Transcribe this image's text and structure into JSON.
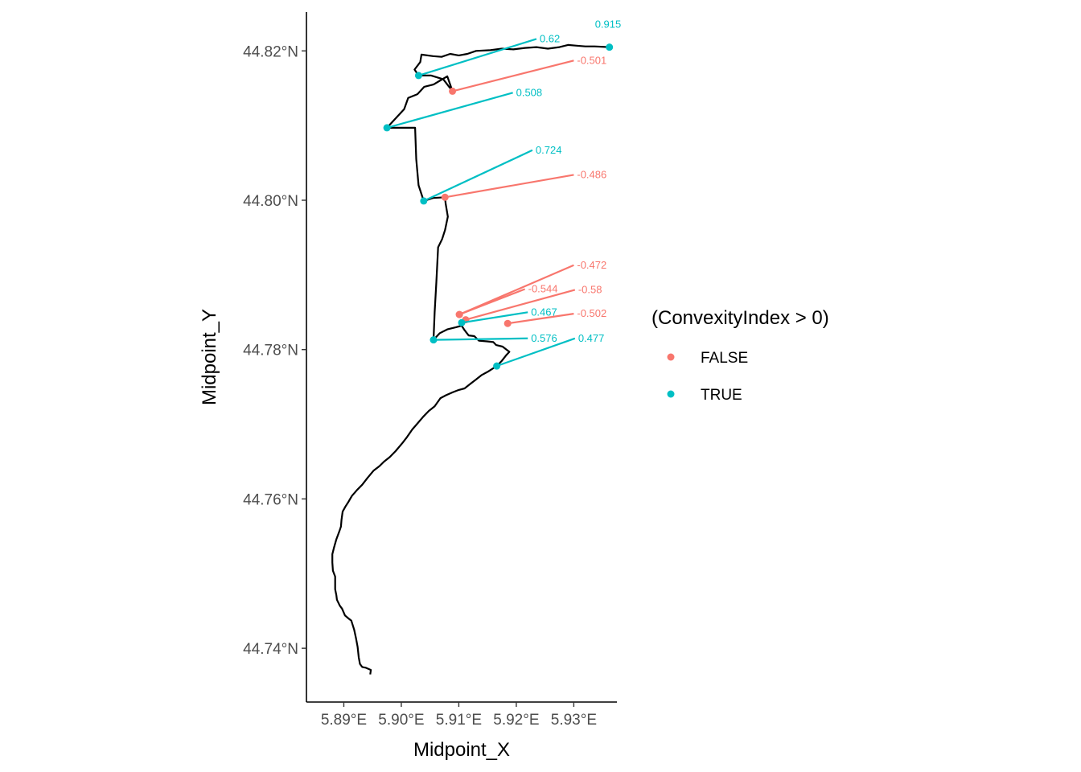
{
  "chart_data": {
    "type": "scatter",
    "title": "",
    "xlabel": "Midpoint_X",
    "ylabel": "Midpoint_Y",
    "xlim": [
      5.8835,
      5.9375
    ],
    "ylim": [
      44.7328,
      44.8252
    ],
    "x_ticks": [
      {
        "value": 5.89,
        "label": "5.89°E"
      },
      {
        "value": 5.9,
        "label": "5.90°E"
      },
      {
        "value": 5.91,
        "label": "5.91°E"
      },
      {
        "value": 5.92,
        "label": "5.92°E"
      },
      {
        "value": 5.93,
        "label": "5.93°E"
      }
    ],
    "y_ticks": [
      {
        "value": 44.74,
        "label": "44.74°N"
      },
      {
        "value": 44.76,
        "label": "44.76°N"
      },
      {
        "value": 44.78,
        "label": "44.78°N"
      },
      {
        "value": 44.8,
        "label": "44.80°N"
      },
      {
        "value": 44.82,
        "label": "44.82°N"
      }
    ],
    "grid": false,
    "legend": {
      "title": "(ConvexityIndex > 0)",
      "placement": "right",
      "entries": [
        {
          "label": "FALSE",
          "color": "#F8766D"
        },
        {
          "label": "TRUE",
          "color": "#00BFC4"
        }
      ]
    },
    "colors": {
      "FALSE": "#F8766D",
      "TRUE": "#00BFC4",
      "line": "#000000"
    },
    "path": [
      [
        5.8946,
        44.7365
      ],
      [
        5.8947,
        44.7371
      ],
      [
        5.8938,
        44.7374
      ],
      [
        5.8932,
        44.7375
      ],
      [
        5.8928,
        44.7379
      ],
      [
        5.8926,
        44.7388
      ],
      [
        5.8924,
        44.7402
      ],
      [
        5.8921,
        44.7414
      ],
      [
        5.8918,
        44.7425
      ],
      [
        5.8913,
        44.7437
      ],
      [
        5.8908,
        44.744
      ],
      [
        5.8902,
        44.7444
      ],
      [
        5.8897,
        44.7453
      ],
      [
        5.8893,
        44.7457
      ],
      [
        5.8888,
        44.7465
      ],
      [
        5.8887,
        44.7471
      ],
      [
        5.8885,
        44.7479
      ],
      [
        5.8885,
        44.7489
      ],
      [
        5.8885,
        44.7496
      ],
      [
        5.8881,
        44.7504
      ],
      [
        5.888,
        44.7515
      ],
      [
        5.888,
        44.7526
      ],
      [
        5.8883,
        44.7535
      ],
      [
        5.8887,
        44.7546
      ],
      [
        5.8892,
        44.7556
      ],
      [
        5.8895,
        44.7563
      ],
      [
        5.8896,
        44.7572
      ],
      [
        5.8898,
        44.7583
      ],
      [
        5.8903,
        44.759
      ],
      [
        5.8908,
        44.7596
      ],
      [
        5.8914,
        44.7604
      ],
      [
        5.8923,
        44.7612
      ],
      [
        5.8932,
        44.7619
      ],
      [
        5.8941,
        44.7628
      ],
      [
        5.8952,
        44.7638
      ],
      [
        5.8962,
        44.7644
      ],
      [
        5.897,
        44.765
      ],
      [
        5.898,
        44.7656
      ],
      [
        5.899,
        44.7664
      ],
      [
        5.9002,
        44.7675
      ],
      [
        5.901,
        44.7683
      ],
      [
        5.9019,
        44.7693
      ],
      [
        5.9028,
        44.7701
      ],
      [
        5.9038,
        44.771
      ],
      [
        5.9048,
        44.7718
      ],
      [
        5.9058,
        44.7724
      ],
      [
        5.9068,
        44.7735
      ],
      [
        5.9078,
        44.7739
      ],
      [
        5.909,
        44.7743
      ],
      [
        5.91,
        44.7746
      ],
      [
        5.911,
        44.7748
      ],
      [
        5.912,
        44.7754
      ],
      [
        5.913,
        44.776
      ],
      [
        5.914,
        44.7766
      ],
      [
        5.9152,
        44.7771
      ],
      [
        5.9162,
        44.7776
      ],
      [
        5.9166,
        44.7778
      ],
      [
        5.9175,
        44.7785
      ],
      [
        5.9183,
        44.7793
      ],
      [
        5.9188,
        44.7797
      ],
      [
        5.9176,
        44.7804
      ],
      [
        5.9165,
        44.7806
      ],
      [
        5.916,
        44.781
      ],
      [
        5.9149,
        44.7811
      ],
      [
        5.9135,
        44.7812
      ],
      [
        5.9127,
        44.7818
      ],
      [
        5.9117,
        44.7819
      ],
      [
        5.911,
        44.7826
      ],
      [
        5.9105,
        44.7832
      ],
      [
        5.9095,
        44.783
      ],
      [
        5.908,
        44.7827
      ],
      [
        5.9067,
        44.7822
      ],
      [
        5.9056,
        44.7813
      ],
      [
        5.9058,
        44.785
      ],
      [
        5.9061,
        44.789
      ],
      [
        5.9064,
        44.7937
      ],
      [
        5.9071,
        44.7948
      ],
      [
        5.9076,
        44.796
      ],
      [
        5.9081,
        44.7978
      ],
      [
        5.9077,
        44.7996
      ],
      [
        5.9076,
        44.8004
      ],
      [
        5.9055,
        44.8003
      ],
      [
        5.9039,
        44.7999
      ],
      [
        5.903,
        44.802
      ],
      [
        5.9026,
        44.8055
      ],
      [
        5.9024,
        44.8097
      ],
      [
        5.8975,
        44.8097
      ],
      [
        5.9005,
        44.8122
      ],
      [
        5.9012,
        44.8137
      ],
      [
        5.9028,
        44.8142
      ],
      [
        5.904,
        44.8152
      ],
      [
        5.9056,
        44.8155
      ],
      [
        5.9069,
        44.8161
      ],
      [
        5.908,
        44.8166
      ],
      [
        5.9089,
        44.8146
      ],
      [
        5.9073,
        44.8162
      ],
      [
        5.9052,
        44.8167
      ],
      [
        5.903,
        44.8167
      ],
      [
        5.9023,
        44.8175
      ],
      [
        5.9033,
        44.8185
      ],
      [
        5.9035,
        44.8195
      ],
      [
        5.9055,
        44.8193
      ],
      [
        5.907,
        44.8192
      ],
      [
        5.9085,
        44.8196
      ],
      [
        5.91,
        44.8194
      ],
      [
        5.9115,
        44.8196
      ],
      [
        5.913,
        44.82
      ],
      [
        5.9155,
        44.8201
      ],
      [
        5.9175,
        44.8203
      ],
      [
        5.9195,
        44.8202
      ],
      [
        5.9215,
        44.8204
      ],
      [
        5.9235,
        44.8205
      ],
      [
        5.9255,
        44.8203
      ],
      [
        5.9275,
        44.8205
      ],
      [
        5.929,
        44.8208
      ],
      [
        5.9305,
        44.8207
      ],
      [
        5.932,
        44.8206
      ],
      [
        5.9336,
        44.8206
      ],
      [
        5.9362,
        44.8205
      ]
    ],
    "points": [
      {
        "x": 5.9362,
        "y": 44.8205,
        "convexity": 0.915,
        "label": "0.915",
        "positive": true,
        "label_end": [
          5.9362,
          44.8205
        ],
        "seg_end": [
          5.9362,
          44.8205
        ]
      },
      {
        "x": 5.903,
        "y": 44.8167,
        "convexity": 0.62,
        "label": "0.62",
        "positive": true,
        "seg_end": [
          5.9235,
          44.8216
        ]
      },
      {
        "x": 5.9089,
        "y": 44.8146,
        "convexity": -0.501,
        "label": "-0.501",
        "positive": false,
        "seg_end": [
          5.93,
          44.8187
        ]
      },
      {
        "x": 5.8975,
        "y": 44.8097,
        "convexity": 0.508,
        "label": "0.508",
        "positive": true,
        "seg_end": [
          5.9194,
          44.8144
        ]
      },
      {
        "x": 5.9039,
        "y": 44.7999,
        "convexity": 0.724,
        "label": "0.724",
        "positive": true,
        "seg_end": [
          5.9228,
          44.8067
        ]
      },
      {
        "x": 5.9076,
        "y": 44.8004,
        "convexity": -0.486,
        "label": "-0.486",
        "positive": false,
        "seg_end": [
          5.93,
          44.8034
        ]
      },
      {
        "x": 5.9101,
        "y": 44.7847,
        "convexity": -0.472,
        "label": "-0.472",
        "positive": false,
        "seg_end": [
          5.93,
          44.7913
        ]
      },
      {
        "x": 5.9101,
        "y": 44.7847,
        "convexity": -0.544,
        "label": "-0.544",
        "positive": false,
        "seg_end": [
          5.9215,
          44.7881
        ]
      },
      {
        "x": 5.9112,
        "y": 44.784,
        "convexity": -0.58,
        "label": "-0.58",
        "positive": false,
        "seg_end": [
          5.9302,
          44.788
        ]
      },
      {
        "x": 5.9185,
        "y": 44.7835,
        "convexity": -0.502,
        "label": "-0.502",
        "positive": false,
        "seg_end": [
          5.93,
          44.7848
        ]
      },
      {
        "x": 5.9105,
        "y": 44.7836,
        "convexity": 0.467,
        "label": "0.467",
        "positive": true,
        "seg_end": [
          5.922,
          44.785
        ]
      },
      {
        "x": 5.9056,
        "y": 44.7813,
        "convexity": 0.576,
        "label": "0.576",
        "positive": true,
        "seg_end": [
          5.922,
          44.7815
        ]
      },
      {
        "x": 5.9166,
        "y": 44.7778,
        "convexity": 0.477,
        "label": "0.477",
        "positive": true,
        "seg_end": [
          5.9302,
          44.7815
        ]
      }
    ]
  }
}
